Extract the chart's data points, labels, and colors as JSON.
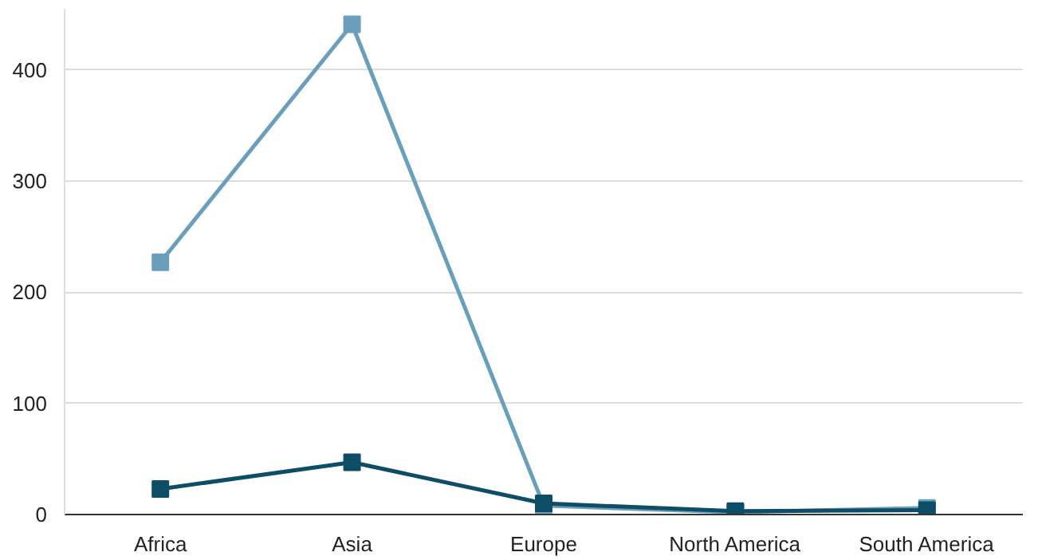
{
  "chart_data": {
    "type": "line",
    "categories": [
      "Africa",
      "Asia",
      "Europe",
      "North America",
      "South America"
    ],
    "series": [
      {
        "color": "#6a9fbb",
        "values": [
          227,
          441,
          8,
          2,
          6
        ]
      },
      {
        "color": "#0d4d66",
        "values": [
          23,
          47,
          10,
          3,
          4
        ]
      }
    ],
    "ylim": [
      0,
      455
    ],
    "yticks": [
      0,
      100,
      200,
      300,
      400
    ],
    "grid": "y",
    "marker": "square",
    "line_style": "solid"
  }
}
